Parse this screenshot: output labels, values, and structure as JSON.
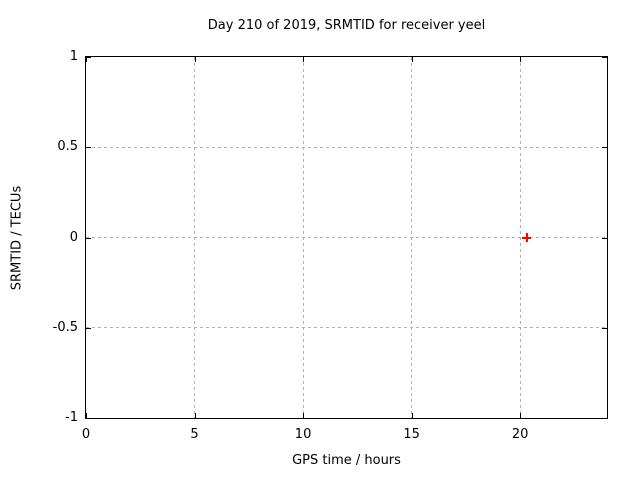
{
  "chart_data": {
    "type": "scatter",
    "title": "Day 210 of 2019, SRMTID for receiver yeel",
    "xlabel": "GPS time / hours",
    "ylabel": "SRMTID / TECUs",
    "xlim": [
      0,
      24
    ],
    "ylim": [
      -1,
      1
    ],
    "xticks": [
      0,
      5,
      10,
      15,
      20
    ],
    "yticks": [
      -1,
      -0.5,
      0,
      0.5,
      1
    ],
    "grid": true,
    "legend_position": "none",
    "colors": {
      "background": "#ffffff",
      "border": "#000000",
      "grid": "#b0b0b0",
      "marker": "#ff0000"
    },
    "series": [
      {
        "name": "SRMTID",
        "marker": "plus",
        "color": "#ff0000",
        "points": [
          {
            "x": 20.3,
            "y": 0.0
          }
        ]
      }
    ]
  }
}
